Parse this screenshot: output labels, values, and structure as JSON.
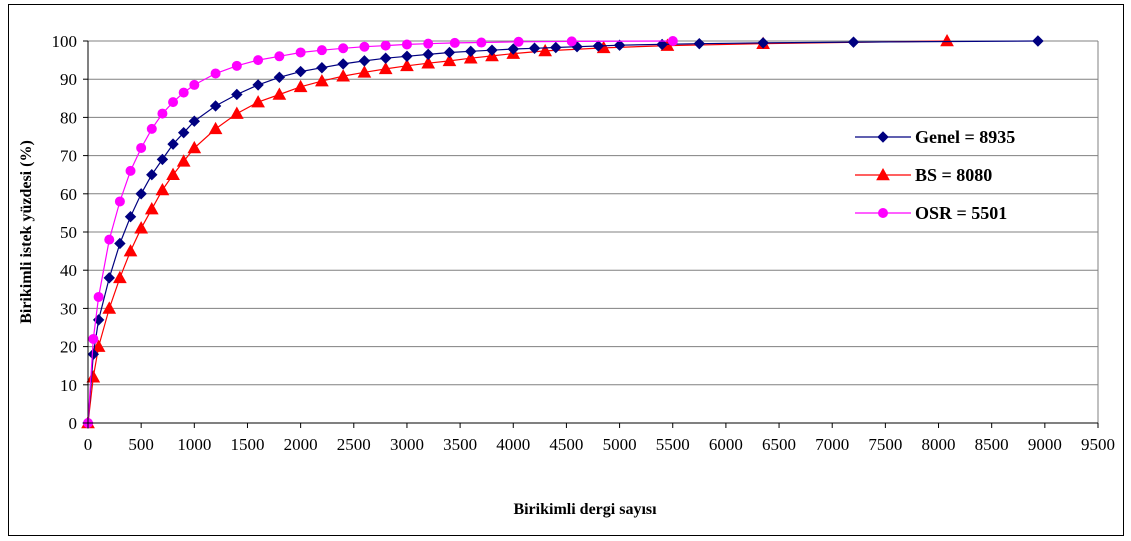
{
  "chart_data": {
    "type": "line",
    "title": "",
    "xlabel": "Birikimli dergi sayısı",
    "ylabel": "Birikimli istek yüzdesi (%)",
    "xlim": [
      0,
      9500
    ],
    "ylim": [
      0,
      100
    ],
    "x_ticks": [
      0,
      500,
      1000,
      1500,
      2000,
      2500,
      3000,
      3500,
      4000,
      4500,
      5000,
      5500,
      6000,
      6500,
      7000,
      7500,
      8000,
      8500,
      9000,
      9500
    ],
    "y_ticks": [
      0,
      10,
      20,
      30,
      40,
      50,
      60,
      70,
      80,
      90,
      100
    ],
    "grid": "horizontal",
    "legend": "right",
    "series": [
      {
        "name": "Genel = 8935",
        "color": "#000080",
        "marker": "diamond",
        "x": [
          0,
          50,
          100,
          200,
          300,
          400,
          500,
          600,
          700,
          800,
          900,
          1000,
          1200,
          1400,
          1600,
          1800,
          2000,
          2200,
          2400,
          2600,
          2800,
          3000,
          3200,
          3400,
          3600,
          3800,
          4000,
          4200,
          4400,
          4600,
          4800,
          5000,
          5400,
          5750,
          6350,
          7200,
          8935
        ],
        "y": [
          0,
          18,
          27,
          38,
          47,
          54,
          60,
          65,
          69,
          73,
          76,
          79,
          83,
          86,
          88.5,
          90.5,
          92,
          93,
          94,
          94.8,
          95.5,
          96,
          96.5,
          97,
          97.3,
          97.6,
          97.9,
          98.1,
          98.3,
          98.5,
          98.7,
          98.9,
          99.1,
          99.3,
          99.5,
          99.7,
          100
        ]
      },
      {
        "name": "BS = 8080",
        "color": "#ff0000",
        "marker": "triangle",
        "x": [
          0,
          50,
          100,
          200,
          300,
          400,
          500,
          600,
          700,
          800,
          900,
          1000,
          1200,
          1400,
          1600,
          1800,
          2000,
          2200,
          2400,
          2600,
          2800,
          3000,
          3200,
          3400,
          3600,
          3800,
          4000,
          4300,
          4850,
          5450,
          6350,
          8080
        ],
        "y": [
          0,
          12,
          20,
          30,
          38,
          45,
          51,
          56,
          61,
          65,
          68.5,
          72,
          77,
          81,
          84,
          86,
          88,
          89.5,
          90.8,
          91.8,
          92.7,
          93.5,
          94.2,
          94.8,
          95.5,
          96.1,
          96.7,
          97.4,
          98.2,
          98.8,
          99.3,
          100
        ]
      },
      {
        "name": "OSR = 5501",
        "color": "#ff00ff",
        "marker": "circle",
        "x": [
          0,
          50,
          100,
          200,
          300,
          400,
          500,
          600,
          700,
          800,
          900,
          1000,
          1200,
          1400,
          1600,
          1800,
          2000,
          2200,
          2400,
          2600,
          2800,
          3000,
          3200,
          3450,
          3700,
          4050,
          4550,
          5501
        ],
        "y": [
          0,
          22,
          33,
          48,
          58,
          66,
          72,
          77,
          81,
          84,
          86.5,
          88.5,
          91.5,
          93.5,
          95,
          96,
          97,
          97.6,
          98.1,
          98.5,
          98.8,
          99.1,
          99.3,
          99.5,
          99.6,
          99.8,
          99.9,
          100
        ]
      }
    ]
  }
}
